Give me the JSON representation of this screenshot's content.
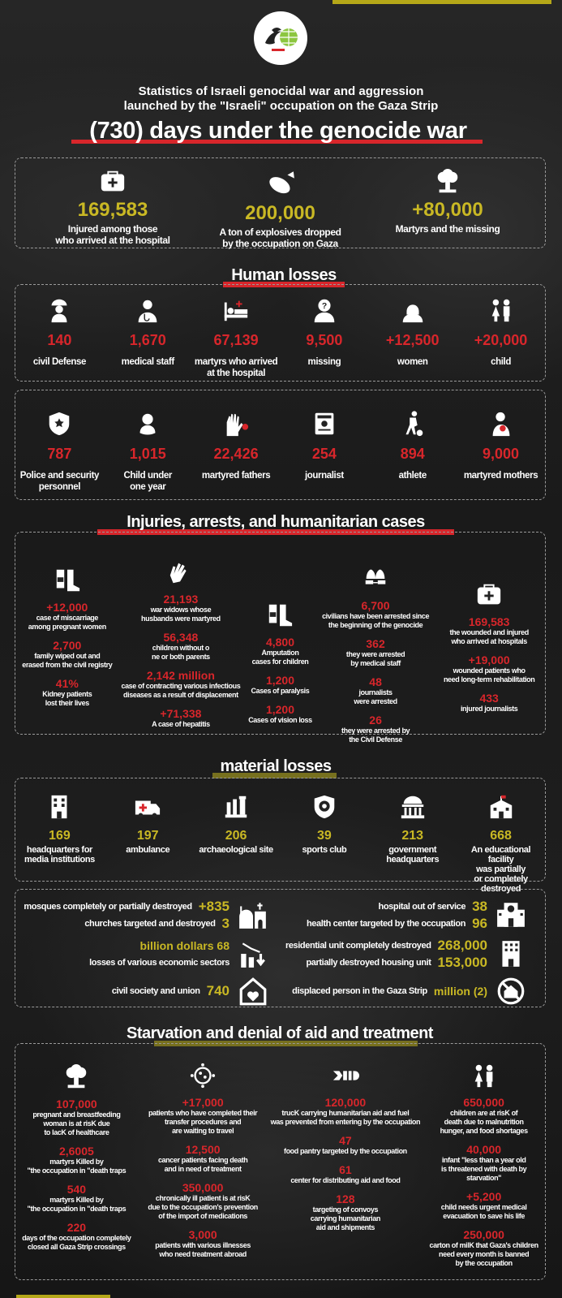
{
  "colors": {
    "accent_red": "#d8262b",
    "accent_olive": "#b5a718",
    "value_yellow": "#c9b824",
    "background": "#1c1c1c"
  },
  "header": {
    "logo_icon": "organization-logo-globe",
    "subtitle_line1": "Statistics of Israeli genocidal war and aggression",
    "subtitle_line2": "launched by the \"Israeli\" occupation on the Gaza Strip",
    "headline": "(730) days under the genocide war"
  },
  "summary": [
    {
      "icon": "medkit",
      "value": "169,583",
      "label": "Injured among those\nwho arrived at the hospital"
    },
    {
      "icon": "bomb",
      "value": "200,000",
      "label": "A ton of explosives dropped\nby the occupation on Gaza"
    },
    {
      "icon": "explosion",
      "value": "+80,000",
      "label": "Martyrs and the missing"
    }
  ],
  "human_losses": {
    "title": "Human losses",
    "row1": [
      {
        "icon": "firefighter",
        "value": "140",
        "label": "civil Defense"
      },
      {
        "icon": "doctor",
        "value": "1,670",
        "label": "medical staff"
      },
      {
        "icon": "hospital-bed",
        "value": "67,139",
        "label": "martyrs who arrived\nat the hospital"
      },
      {
        "icon": "missing-person",
        "value": "9,500",
        "label": "missing"
      },
      {
        "icon": "woman",
        "value": "+12,500",
        "label": "women"
      },
      {
        "icon": "children",
        "value": "+20,000",
        "label": "child"
      }
    ],
    "row2": [
      {
        "icon": "police-badge",
        "value": "787",
        "label": "Police and security\npersonnel"
      },
      {
        "icon": "baby",
        "value": "1,015",
        "label": "Child under\none year"
      },
      {
        "icon": "raised-hands",
        "value": "22,426",
        "label": "martyred fathers"
      },
      {
        "icon": "press-card",
        "value": "254",
        "label": "journalist"
      },
      {
        "icon": "athlete",
        "value": "894",
        "label": "athlete"
      },
      {
        "icon": "mother",
        "value": "9,000",
        "label": "martyred mothers"
      }
    ]
  },
  "injuries": {
    "title": "Injuries, arrests, and humanitarian cases",
    "columns": [
      {
        "icon": "injured-leg",
        "stats": [
          {
            "value": "+12,000",
            "label": "case of miscarriage\namong pregnant women"
          },
          {
            "value": "2,700",
            "label": "family wiped out and\nerased from the civil registry"
          },
          {
            "value": "41%",
            "label": "Kidney patients\nlost their lives"
          }
        ]
      },
      {
        "icon": "waving-hands",
        "stats": [
          {
            "value": "21,193",
            "label": "war widows whose\nhusbands were martyred"
          },
          {
            "value": "56,348",
            "label": "children without o\nne or both parents"
          },
          {
            "value": "2,142 million",
            "label": "case of contracting various infectious\ndiseases as a result of displacement"
          },
          {
            "value": "+71,338",
            "label": "A case of hepatitis"
          }
        ]
      },
      {
        "icon": "injured-leg",
        "stats": [
          {
            "value": "4,800",
            "label": "Amputation\ncases for children"
          },
          {
            "value": "1,200",
            "label": "Cases of paralysis"
          },
          {
            "value": "1,200",
            "label": "Cases of vision loss"
          }
        ]
      },
      {
        "icon": "handcuffs",
        "stats": [
          {
            "value": "6,700",
            "label": "civilians have been arrested since\nthe beginning of the genocide"
          },
          {
            "value": "362",
            "label": "they were arrested\nby medical staff"
          },
          {
            "value": "48",
            "label": "journalists\nwere arrested"
          },
          {
            "value": "26",
            "label": "they were arrested by\nthe Civil Defense"
          }
        ]
      },
      {
        "icon": "medkit",
        "stats": [
          {
            "value": "169,583",
            "label": "the wounded and injured\nwho arrived at hospitals"
          },
          {
            "value": "+19,000",
            "label": "wounded patients who\nneed long-term rehabilitation"
          },
          {
            "value": "433",
            "label": "injured journalists"
          }
        ]
      }
    ]
  },
  "material": {
    "title": "material losses",
    "row": [
      {
        "icon": "office-building",
        "value": "169",
        "label": "headquarters for\nmedia institutions"
      },
      {
        "icon": "ambulance",
        "value": "197",
        "label": "ambulance"
      },
      {
        "icon": "archaeological-columns",
        "value": "206",
        "label": "archaeological site"
      },
      {
        "icon": "sports-shield",
        "value": "39",
        "label": "sports club"
      },
      {
        "icon": "government-building",
        "value": "213",
        "label": "government\nheadquarters"
      },
      {
        "icon": "school",
        "value": "668",
        "label": "An educational facility\nwas partially\nor completely destroyed"
      }
    ],
    "left_groups": [
      {
        "icon": "mosque-church",
        "lines": [
          {
            "label": "mosques completely or partially destroyed",
            "value": "+835"
          },
          {
            "label": "churches targeted and destroyed",
            "value": "3"
          }
        ]
      },
      {
        "icon": "chart-down",
        "lines": [
          {
            "label": "",
            "value": "billion dollars 68"
          },
          {
            "label": "losses of various economic sectors",
            "value": ""
          }
        ]
      },
      {
        "icon": "house-heart",
        "lines": [
          {
            "label": "civil society and union",
            "value": "740"
          }
        ]
      }
    ],
    "right_groups": [
      {
        "icon": "hospital",
        "lines": [
          {
            "label": "hospital out of service",
            "value": "38"
          },
          {
            "label": "health center targeted by the occupation",
            "value": "96"
          }
        ]
      },
      {
        "icon": "apartment",
        "lines": [
          {
            "label": "residential unit completely destroyed",
            "value": "268,000"
          },
          {
            "label": "partially destroyed housing unit",
            "value": "153,000"
          }
        ]
      },
      {
        "icon": "no-home",
        "lines": [
          {
            "label": "displaced person in the Gaza Strip",
            "value": "million (2)"
          }
        ]
      }
    ]
  },
  "starvation": {
    "title": "Starvation and denial of aid and treatment",
    "columns": [
      {
        "icon": "explosion",
        "stats": [
          {
            "value": "107,000",
            "label": "pregnant and breastfeeding\nwoman is at risK due\nto lacK of healthcare"
          },
          {
            "value": "2,6005",
            "label": "martyrs Killed by\n\"the occupation in \"death traps"
          },
          {
            "value": "540",
            "label": "martyrs Killed by\n\"the occupation in \"death traps"
          },
          {
            "value": "220",
            "label": "days of the occupation completely\nclosed all Gaza Strip crossings"
          }
        ]
      },
      {
        "icon": "virus",
        "stats": [
          {
            "value": "+17,000",
            "label": "patients who have completed their\ntransfer procedures and\nare waiting to travel"
          },
          {
            "value": "12,500",
            "label": "cancer patients facing death\nand in need of treatment"
          },
          {
            "value": "350,000",
            "label": "chronically ill patient is at risK\ndue to the occupation's prevention\nof the import of medications"
          },
          {
            "value": "3,000",
            "label": "patients with various illnesses\nwho need treatment abroad"
          }
        ]
      },
      {
        "icon": "missile",
        "stats": [
          {
            "value": "120,000",
            "label": "trucK carrying humanitarian aid and fuel\nwas prevented from entering by the occupation"
          },
          {
            "value": "47",
            "label": "food pantry targeted by the occupation"
          },
          {
            "value": "61",
            "label": "center for distributing aid and food"
          },
          {
            "value": "128",
            "label": "targeting of convoys\ncarrying humanitarian\naid and shipments"
          }
        ]
      },
      {
        "icon": "children",
        "stats": [
          {
            "value": "650,000",
            "label": "children are at risK of\ndeath due to malnutrition\nhunger, and food shortages"
          },
          {
            "value": "40,000",
            "label": "infant \"less than a year old\nis threatened with death by starvation\""
          },
          {
            "value": "+5,200",
            "label": "child needs urgent medical\nevacuation to save his life"
          },
          {
            "value": "250,000",
            "label": "carton of milK that Gaza's children\nneed every month is banned\nby the occupation"
          }
        ]
      }
    ]
  }
}
